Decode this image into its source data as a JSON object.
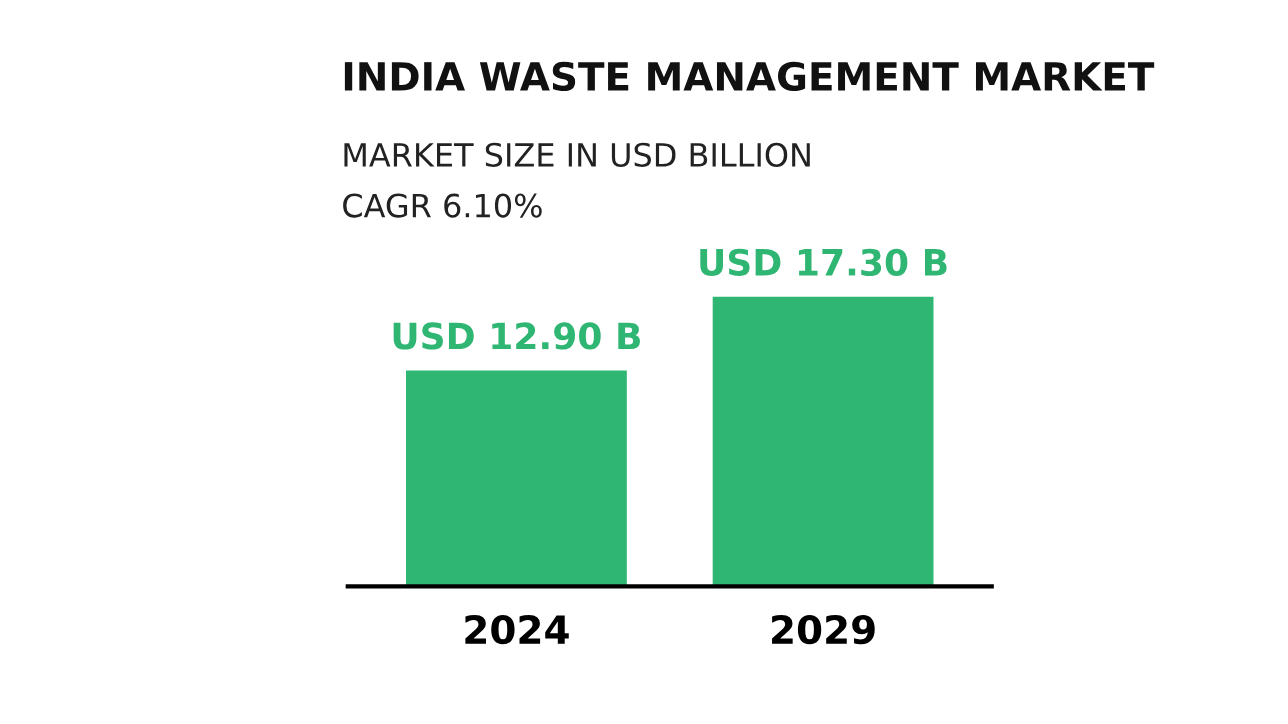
{
  "chart_data": {
    "type": "bar",
    "title": "INDIA WASTE MANAGEMENT MARKET",
    "subtitle": "MARKET SIZE IN USD BILLION",
    "annotations": [
      "CAGR 6.10%"
    ],
    "categories": [
      "2024",
      "2029"
    ],
    "series": [
      {
        "color": "#2fb673",
        "values": [
          12.9,
          17.3
        ],
        "value_labels": [
          "USD 12.90 B",
          "USD 17.30 B"
        ]
      }
    ],
    "grid": false,
    "legend": false
  }
}
